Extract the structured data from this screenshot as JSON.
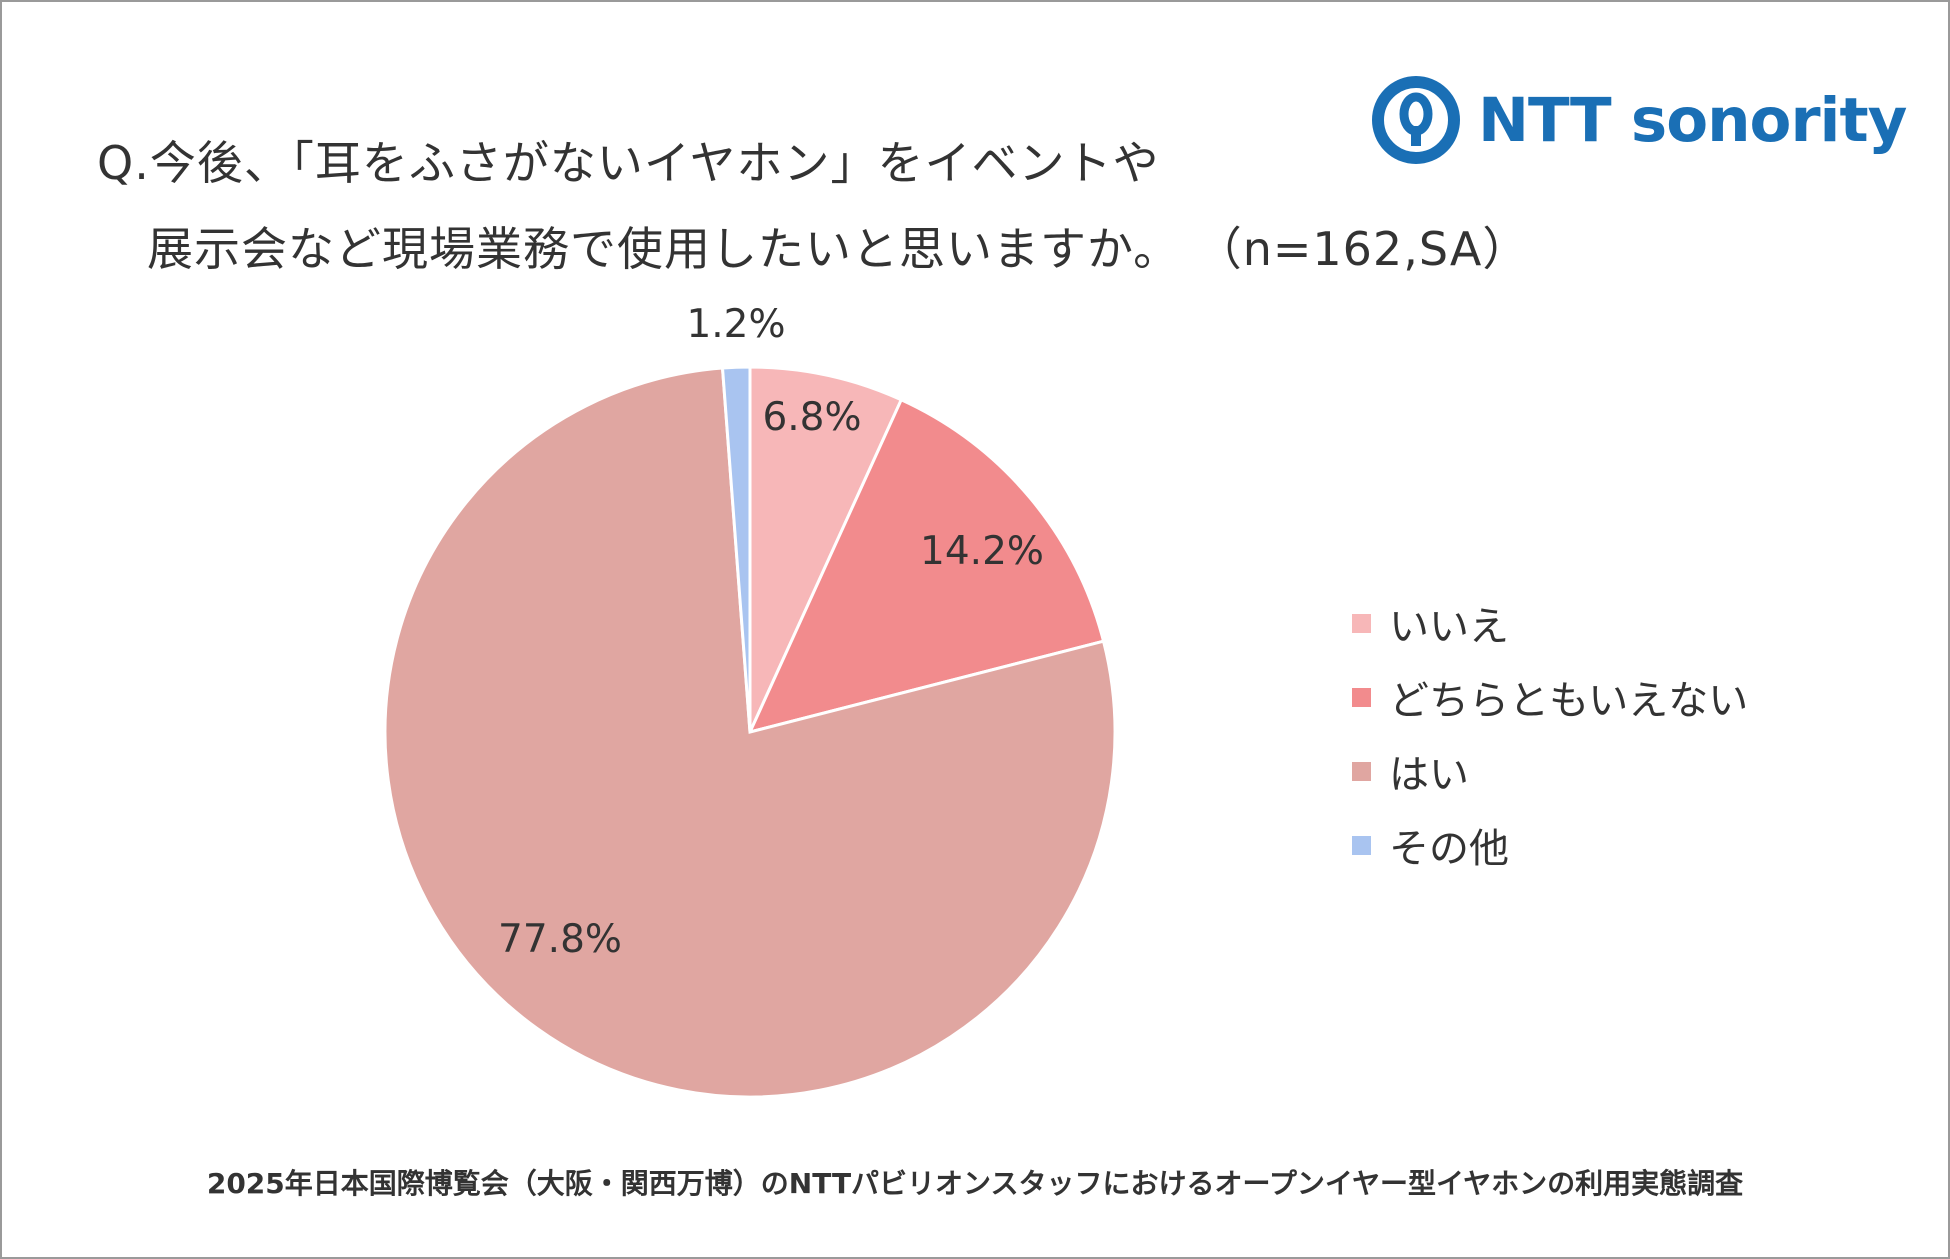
{
  "title": {
    "line1": "Q.今後、「耳をふさがないイヤホン」をイベントや",
    "line2": "展示会など現場業務で使用したいと思いますか。 （n=162,SA）"
  },
  "logo": {
    "text": "NTT sonority",
    "icon": "ntt-logo-icon",
    "color": "#1a6fb5"
  },
  "chart_data": {
    "type": "pie",
    "title": "Q.今後、「耳をふさがないイヤホン」をイベントや展示会など現場業務で使用したいと思いますか。 （n=162,SA）",
    "legend_position": "right",
    "slices": [
      {
        "name": "いいえ",
        "value": 6.8,
        "label": "6.8%",
        "color": "#f7b7b8"
      },
      {
        "name": "どちらともいえない",
        "value": 14.2,
        "label": "14.2%",
        "color": "#f28b8d"
      },
      {
        "name": "はい",
        "value": 77.8,
        "label": "77.8%",
        "color": "#e0a6a1"
      },
      {
        "name": "その他",
        "value": 1.2,
        "label": "1.2%",
        "color": "#a9c4f0"
      }
    ]
  },
  "footer": "2025年日本国際博覧会（大阪・関西万博）のNTTパビリオンスタッフにおけるオープンイヤー型イヤホンの利用実態調査"
}
